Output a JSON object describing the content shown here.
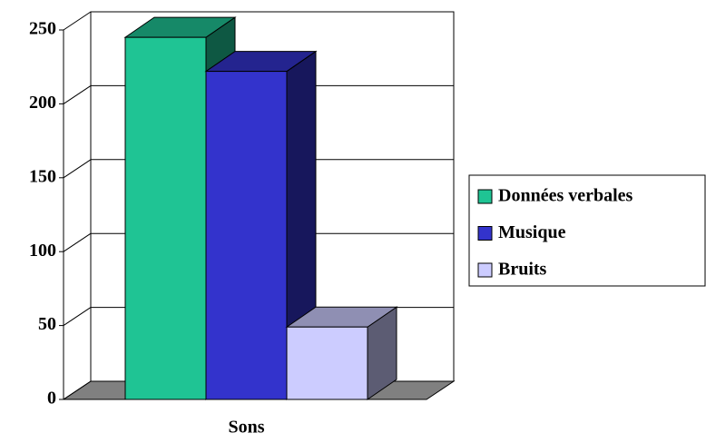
{
  "chart_data": {
    "type": "bar3d",
    "categories": [
      "Sons"
    ],
    "series": [
      {
        "name": "Données verbales",
        "color": "#1fc494",
        "values": [
          245
        ]
      },
      {
        "name": "Musique",
        "color": "#3333cc",
        "values": [
          222
        ]
      },
      {
        "name": "Bruits",
        "color": "#ccccff",
        "values": [
          49
        ]
      }
    ],
    "ylim": [
      0,
      250
    ],
    "yticks": [
      0,
      50,
      100,
      150,
      200,
      250
    ],
    "grid": true,
    "legend": "right"
  }
}
